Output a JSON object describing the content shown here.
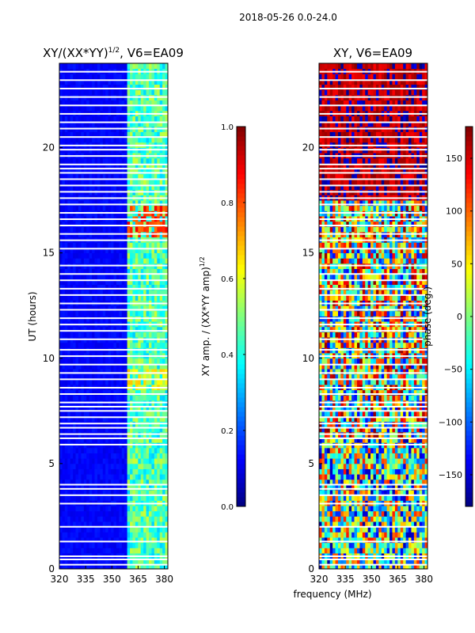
{
  "figure_title": "2018-05-26 0.0-24.0",
  "xlabel_shared": "frequency (MHz)",
  "colors": {
    "jet": [
      "#00007f",
      "#0000ff",
      "#007fff",
      "#00ffff",
      "#7fff7f",
      "#ffff00",
      "#ff7f00",
      "#ff0000",
      "#7f0000"
    ],
    "gap": "#ffffff"
  },
  "chart_data": [
    {
      "type": "heatmap",
      "title": "XY/(XX*YY)",
      "title_exponent": "1/2",
      "title_suffix": ", V6=EA09",
      "xlabel": "",
      "ylabel": "UT (hours)",
      "xlim": [
        320,
        382
      ],
      "ylim": [
        0,
        24
      ],
      "x_ticks": [
        320,
        335,
        350,
        365,
        380
      ],
      "y_ticks": [
        0,
        5,
        10,
        15,
        20
      ],
      "colorbar": {
        "label": "XY amp. / (XX*YY amp)",
        "label_exponent": "1/2",
        "range": [
          0.0,
          1.0
        ],
        "ticks": [
          "0.0",
          "0.2",
          "0.4",
          "0.6",
          "0.8",
          "1.0"
        ]
      },
      "features": {
        "low_band_value": 0.1,
        "high_band_start_mhz": 359,
        "high_band_value": 0.45,
        "hot_patches": [
          {
            "t0": 15.8,
            "t1": 17.3,
            "value": 0.82
          },
          {
            "t0": 8.5,
            "t1": 9.4,
            "value": 0.62
          }
        ]
      }
    },
    {
      "type": "heatmap",
      "title": "XY, V6=EA09",
      "xlabel": "",
      "ylabel": "",
      "xlim": [
        320,
        382
      ],
      "ylim": [
        0,
        24
      ],
      "x_ticks": [
        320,
        335,
        350,
        365,
        380
      ],
      "y_ticks": [
        0,
        5,
        10,
        15,
        20
      ],
      "colorbar": {
        "label": "phase (deg.)",
        "range": [
          -180,
          180
        ],
        "ticks": [
          "−150",
          "−100",
          "−50",
          "0",
          "50",
          "100",
          "150"
        ]
      },
      "features": {
        "top_band": {
          "t0": 17.4,
          "t1": 24.0,
          "value": 155
        },
        "mid_band": {
          "t0": 6.3,
          "t1": 12.3,
          "value": 20
        },
        "low_band": {
          "t0": 0.0,
          "t1": 6.3,
          "value": -20
        }
      }
    }
  ],
  "gap_hours": [
    0.2,
    0.45,
    0.6,
    1.3,
    2.0,
    3.1,
    3.5,
    3.8,
    4.0,
    5.9,
    6.2,
    6.4,
    6.7,
    6.9,
    7.2,
    7.5,
    7.7,
    7.9,
    8.3,
    8.6,
    9.0,
    9.3,
    9.7,
    10.1,
    10.4,
    10.9,
    11.3,
    11.6,
    11.9,
    12.3,
    12.6,
    13.0,
    13.3,
    13.7,
    14.0,
    14.4,
    15.2,
    15.6,
    15.9,
    16.3,
    16.6,
    16.9,
    17.3,
    17.6,
    17.9,
    18.2,
    18.5,
    18.8,
    19.0,
    19.2,
    19.6,
    19.9,
    20.1,
    20.5,
    20.9,
    21.2,
    21.6,
    22.0,
    22.4,
    22.8,
    23.2,
    23.6
  ]
}
